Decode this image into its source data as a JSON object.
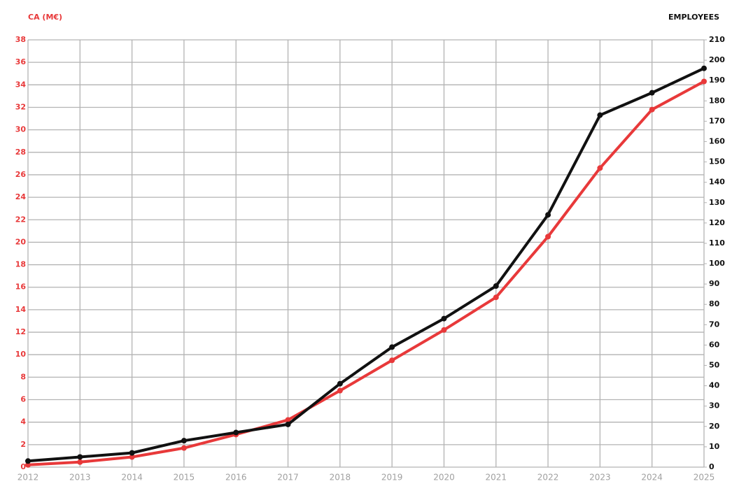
{
  "chart_data": {
    "type": "line",
    "ylabel": "CA (M€)",
    "y2label": "EMPLOYEES",
    "categories": [
      "2012",
      "2013",
      "2014",
      "2015",
      "2016",
      "2017",
      "2018",
      "2019",
      "2020",
      "2021",
      "2022",
      "2023",
      "2024",
      "2025"
    ],
    "series": [
      {
        "name": "CA (M€)",
        "color": "#e8393a",
        "axis": "y",
        "values": [
          0.2,
          0.45,
          0.9,
          1.7,
          2.9,
          4.2,
          6.8,
          9.5,
          12.2,
          15.1,
          20.5,
          26.6,
          31.8,
          34.3
        ]
      },
      {
        "name": "EMPLOYEES",
        "color": "#111111",
        "axis": "y2",
        "values": [
          3,
          5,
          7,
          13,
          17,
          21,
          41,
          59,
          73,
          89,
          124,
          173,
          184,
          196
        ]
      }
    ],
    "ylim": [
      0,
      38
    ],
    "yticks": [
      0,
      2,
      4,
      6,
      8,
      10,
      12,
      14,
      16,
      18,
      20,
      22,
      24,
      26,
      28,
      30,
      32,
      34,
      36,
      38
    ],
    "y2lim": [
      0,
      210
    ],
    "y2ticks": [
      0,
      10,
      20,
      30,
      40,
      50,
      60,
      70,
      80,
      90,
      100,
      110,
      120,
      130,
      140,
      150,
      160,
      170,
      180,
      190,
      200,
      210
    ],
    "grid": true
  }
}
